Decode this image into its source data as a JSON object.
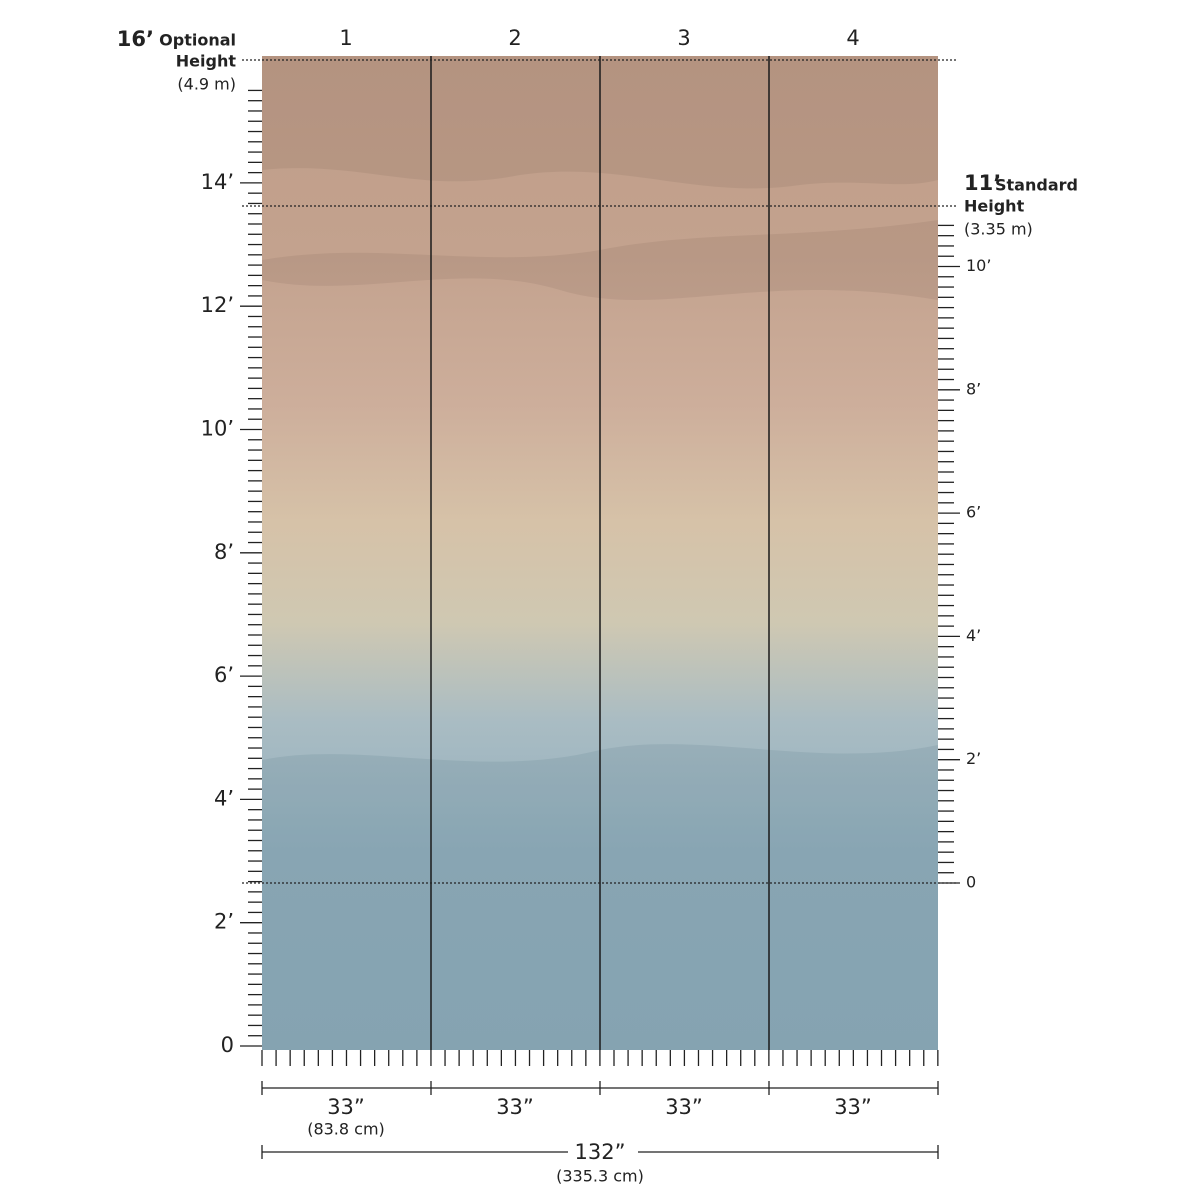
{
  "panels": [
    "1",
    "2",
    "3",
    "4"
  ],
  "optional_height": {
    "feet": "16’",
    "label": "Optional",
    "label_line2": "Height",
    "metric": "(4.9 m)"
  },
  "standard_height": {
    "feet": "11’",
    "label": "Standard",
    "label_line2": "Height",
    "metric": "(3.35 m)"
  },
  "left_scale": [
    "14’",
    "12’",
    "10’",
    "8’",
    "6’",
    "4’",
    "2’",
    "0"
  ],
  "right_scale": [
    "10’",
    "8’",
    "6’",
    "4’",
    "2’",
    "0"
  ],
  "panel_widths": [
    {
      "imperial": "33”",
      "metric": "(83.8 cm)"
    },
    {
      "imperial": "33”"
    },
    {
      "imperial": "33”"
    },
    {
      "imperial": "33”"
    }
  ],
  "total_width": {
    "imperial": "132”",
    "metric": "(335.3 cm)"
  }
}
